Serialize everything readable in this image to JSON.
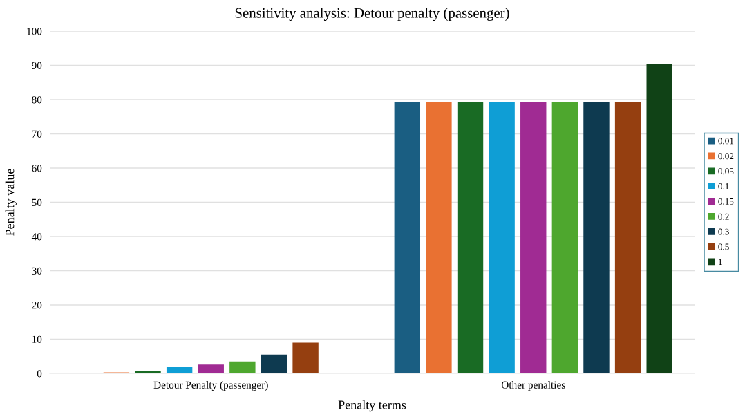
{
  "chart_data": {
    "type": "bar",
    "title": "Sensitivity analysis: Detour penalty (passenger)",
    "xlabel": "Penalty terms",
    "ylabel": "Penalty value",
    "categories": [
      "Detour Penalty (passenger)",
      "Other penalties"
    ],
    "series": [
      {
        "name": "0.01",
        "color": "#1a5e82",
        "values": [
          0.2,
          79.4
        ]
      },
      {
        "name": "0.02",
        "color": "#e97132",
        "values": [
          0.3,
          79.4
        ]
      },
      {
        "name": "0.05",
        "color": "#196b24",
        "values": [
          0.8,
          79.4
        ]
      },
      {
        "name": "0.1",
        "color": "#0f9ed5",
        "values": [
          1.8,
          79.4
        ]
      },
      {
        "name": "0.15",
        "color": "#a02b93",
        "values": [
          2.6,
          79.4
        ]
      },
      {
        "name": "0.2",
        "color": "#4ea72e",
        "values": [
          3.5,
          79.4
        ]
      },
      {
        "name": "0.3",
        "color": "#0e3a50",
        "values": [
          5.5,
          79.4
        ]
      },
      {
        "name": "0.5",
        "color": "#953f10",
        "values": [
          9.0,
          79.4
        ]
      },
      {
        "name": "1",
        "color": "#104216",
        "values": [
          0,
          90.4
        ]
      }
    ],
    "ylim": [
      0,
      100
    ],
    "yticks": [
      0,
      10,
      20,
      30,
      40,
      50,
      60,
      70,
      80,
      90,
      100
    ],
    "grid": "y",
    "legend": "right"
  }
}
